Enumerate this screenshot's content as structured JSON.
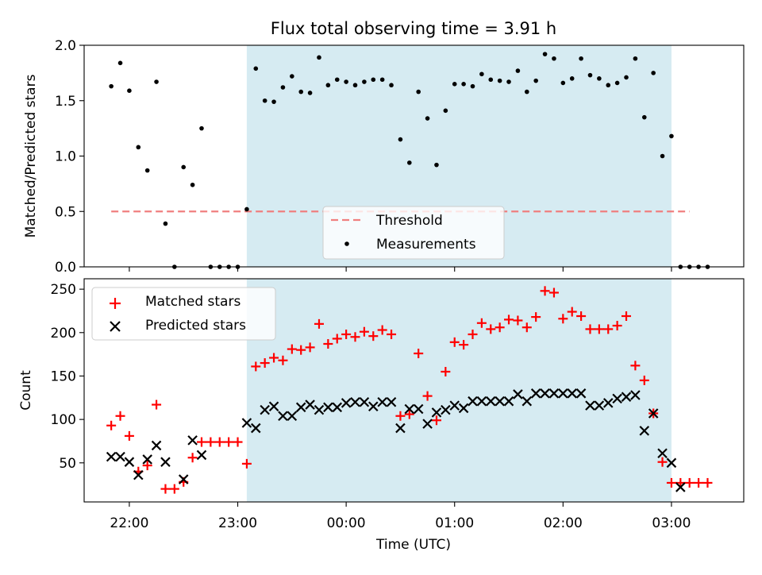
{
  "title": "Flux total observing time = 3.91 h",
  "xlabel": "Time (UTC)",
  "x_tick_labels": [
    "22:00",
    "23:00",
    "00:00",
    "01:00",
    "02:00",
    "03:00"
  ],
  "colors": {
    "shade": "#add8e6",
    "threshold": "#f07f7f",
    "measurement": "#000000",
    "matched": "#ff0000",
    "predicted": "#000000"
  },
  "chart_data": [
    {
      "type": "scatter",
      "ylabel": "Matched/Predicted stars",
      "ylim": [
        0,
        2.0
      ],
      "y_ticks": [
        "0.0",
        "0.5",
        "1.0",
        "1.5",
        "2.0"
      ],
      "shaded_interval": [
        "23:05",
        "03:00"
      ],
      "threshold": {
        "name": "Threshold",
        "value": 0.5,
        "x": [
          "21:50",
          "03:10"
        ]
      },
      "legend": {
        "placement": "lower center",
        "entries": [
          "Threshold",
          "Measurements"
        ]
      },
      "series": [
        {
          "name": "Measurements",
          "points": [
            [
              "21:50",
              1.63
            ],
            [
              "21:55",
              1.84
            ],
            [
              "22:00",
              1.59
            ],
            [
              "22:05",
              1.08
            ],
            [
              "22:10",
              0.87
            ],
            [
              "22:15",
              1.67
            ],
            [
              "22:20",
              0.39
            ],
            [
              "22:25",
              0.0
            ],
            [
              "22:30",
              0.9
            ],
            [
              "22:35",
              0.74
            ],
            [
              "22:40",
              1.25
            ],
            [
              "22:45",
              0.0
            ],
            [
              "22:50",
              0.0
            ],
            [
              "22:55",
              0.0
            ],
            [
              "23:00",
              0.0
            ],
            [
              "23:05",
              0.52
            ],
            [
              "23:10",
              1.79
            ],
            [
              "23:15",
              1.5
            ],
            [
              "23:20",
              1.49
            ],
            [
              "23:25",
              1.62
            ],
            [
              "23:30",
              1.72
            ],
            [
              "23:35",
              1.58
            ],
            [
              "23:40",
              1.57
            ],
            [
              "23:45",
              1.89
            ],
            [
              "23:50",
              1.64
            ],
            [
              "23:55",
              1.69
            ],
            [
              "00:00",
              1.67
            ],
            [
              "00:05",
              1.64
            ],
            [
              "00:10",
              1.67
            ],
            [
              "00:15",
              1.69
            ],
            [
              "00:20",
              1.69
            ],
            [
              "00:25",
              1.64
            ],
            [
              "00:30",
              1.15
            ],
            [
              "00:35",
              0.94
            ],
            [
              "00:40",
              1.58
            ],
            [
              "00:45",
              1.34
            ],
            [
              "00:50",
              0.92
            ],
            [
              "00:55",
              1.41
            ],
            [
              "01:00",
              1.65
            ],
            [
              "01:05",
              1.65
            ],
            [
              "01:10",
              1.63
            ],
            [
              "01:15",
              1.74
            ],
            [
              "01:20",
              1.69
            ],
            [
              "01:25",
              1.68
            ],
            [
              "01:30",
              1.67
            ],
            [
              "01:35",
              1.77
            ],
            [
              "01:40",
              1.58
            ],
            [
              "01:45",
              1.68
            ],
            [
              "01:50",
              1.92
            ],
            [
              "01:55",
              1.88
            ],
            [
              "02:00",
              1.66
            ],
            [
              "02:05",
              1.7
            ],
            [
              "02:10",
              1.88
            ],
            [
              "02:15",
              1.73
            ],
            [
              "02:20",
              1.7
            ],
            [
              "02:25",
              1.64
            ],
            [
              "02:30",
              1.66
            ],
            [
              "02:35",
              1.71
            ],
            [
              "02:40",
              1.88
            ],
            [
              "02:45",
              1.35
            ],
            [
              "02:50",
              1.75
            ],
            [
              "02:55",
              1.0
            ],
            [
              "03:00",
              1.18
            ],
            [
              "03:05",
              0.0
            ],
            [
              "03:10",
              0.0
            ],
            [
              "03:15",
              0.0
            ],
            [
              "03:20",
              0.0
            ]
          ]
        }
      ]
    },
    {
      "type": "scatter",
      "ylabel": "Count",
      "ylim": [
        5,
        262
      ],
      "y_ticks": [
        "50",
        "100",
        "150",
        "200",
        "250"
      ],
      "shaded_interval": [
        "23:05",
        "03:00"
      ],
      "legend": {
        "placement": "top-left",
        "entries": [
          "Matched stars",
          "Predicted stars"
        ]
      },
      "series": [
        {
          "name": "Matched stars",
          "marker": "plus",
          "points": [
            [
              "21:50",
              93
            ],
            [
              "21:55",
              104
            ],
            [
              "22:00",
              81
            ],
            [
              "22:05",
              40
            ],
            [
              "22:10",
              47
            ],
            [
              "22:15",
              117
            ],
            [
              "22:20",
              20
            ],
            [
              "22:25",
              20
            ],
            [
              "22:30",
              28
            ],
            [
              "22:35",
              56
            ],
            [
              "22:40",
              74
            ],
            [
              "22:45",
              74
            ],
            [
              "22:50",
              74
            ],
            [
              "22:55",
              74
            ],
            [
              "23:00",
              74
            ],
            [
              "23:05",
              49
            ],
            [
              "23:10",
              161
            ],
            [
              "23:15",
              165
            ],
            [
              "23:20",
              171
            ],
            [
              "23:25",
              168
            ],
            [
              "23:30",
              181
            ],
            [
              "23:35",
              180
            ],
            [
              "23:40",
              183
            ],
            [
              "23:45",
              210
            ],
            [
              "23:50",
              187
            ],
            [
              "23:55",
              193
            ],
            [
              "00:00",
              198
            ],
            [
              "00:05",
              195
            ],
            [
              "00:10",
              201
            ],
            [
              "00:15",
              196
            ],
            [
              "00:20",
              203
            ],
            [
              "00:25",
              198
            ],
            [
              "00:30",
              104
            ],
            [
              "00:35",
              106
            ],
            [
              "00:40",
              176
            ],
            [
              "00:45",
              127
            ],
            [
              "00:50",
              99
            ],
            [
              "00:55",
              155
            ],
            [
              "01:00",
              189
            ],
            [
              "01:05",
              186
            ],
            [
              "01:10",
              198
            ],
            [
              "01:15",
              211
            ],
            [
              "01:20",
              204
            ],
            [
              "01:25",
              206
            ],
            [
              "01:30",
              215
            ],
            [
              "01:35",
              214
            ],
            [
              "01:40",
              206
            ],
            [
              "01:45",
              218
            ],
            [
              "01:50",
              248
            ],
            [
              "01:55",
              246
            ],
            [
              "02:00",
              216
            ],
            [
              "02:05",
              224
            ],
            [
              "02:10",
              219
            ],
            [
              "02:15",
              204
            ],
            [
              "02:20",
              204
            ],
            [
              "02:25",
              204
            ],
            [
              "02:30",
              208
            ],
            [
              "02:35",
              219
            ],
            [
              "02:40",
              162
            ],
            [
              "02:45",
              145
            ],
            [
              "02:50",
              107
            ],
            [
              "02:55",
              51
            ],
            [
              "03:00",
              27
            ],
            [
              "03:05",
              27
            ],
            [
              "03:10",
              27
            ],
            [
              "03:15",
              27
            ],
            [
              "03:20",
              27
            ]
          ]
        },
        {
          "name": "Predicted stars",
          "marker": "x",
          "points": [
            [
              "21:50",
              57
            ],
            [
              "21:55",
              57
            ],
            [
              "22:00",
              51
            ],
            [
              "22:05",
              36
            ],
            [
              "22:10",
              54
            ],
            [
              "22:15",
              70
            ],
            [
              "22:20",
              51
            ],
            [
              "22:30",
              31
            ],
            [
              "22:35",
              76
            ],
            [
              "22:40",
              59
            ],
            [
              "23:05",
              96
            ],
            [
              "23:10",
              90
            ],
            [
              "23:15",
              111
            ],
            [
              "23:20",
              115
            ],
            [
              "23:25",
              104
            ],
            [
              "23:30",
              104
            ],
            [
              "23:35",
              114
            ],
            [
              "23:40",
              117
            ],
            [
              "23:45",
              111
            ],
            [
              "23:50",
              114
            ],
            [
              "23:55",
              114
            ],
            [
              "00:00",
              119
            ],
            [
              "00:05",
              120
            ],
            [
              "00:10",
              120
            ],
            [
              "00:15",
              115
            ],
            [
              "00:20",
              120
            ],
            [
              "00:25",
              120
            ],
            [
              "00:30",
              90
            ],
            [
              "00:35",
              112
            ],
            [
              "00:40",
              112
            ],
            [
              "00:45",
              95
            ],
            [
              "00:50",
              108
            ],
            [
              "00:55",
              111
            ],
            [
              "01:00",
              116
            ],
            [
              "01:05",
              113
            ],
            [
              "01:10",
              121
            ],
            [
              "01:15",
              121
            ],
            [
              "01:20",
              121
            ],
            [
              "01:25",
              121
            ],
            [
              "01:30",
              121
            ],
            [
              "01:35",
              129
            ],
            [
              "01:40",
              121
            ],
            [
              "01:45",
              130
            ],
            [
              "01:50",
              130
            ],
            [
              "01:55",
              130
            ],
            [
              "02:00",
              130
            ],
            [
              "02:05",
              130
            ],
            [
              "02:10",
              130
            ],
            [
              "02:15",
              116
            ],
            [
              "02:20",
              116
            ],
            [
              "02:25",
              119
            ],
            [
              "02:30",
              124
            ],
            [
              "02:35",
              126
            ],
            [
              "02:40",
              128
            ],
            [
              "02:45",
              87
            ],
            [
              "02:50",
              107
            ],
            [
              "02:55",
              61
            ],
            [
              "03:00",
              50
            ],
            [
              "03:05",
              22
            ]
          ]
        }
      ]
    }
  ]
}
